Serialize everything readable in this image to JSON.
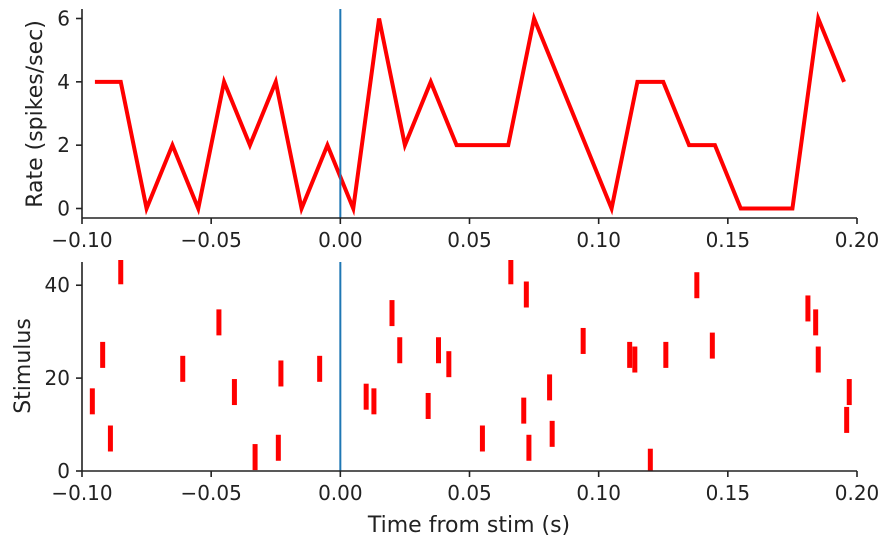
{
  "colors": {
    "data": "#ff0000",
    "stim_line": "#1f77b4",
    "axes": "#222222"
  },
  "chart_data": [
    {
      "type": "line",
      "title": "",
      "xlabel": "",
      "ylabel": "Rate (spikes/sec)",
      "xlim": [
        -0.1,
        0.2
      ],
      "ylim": [
        -0.3,
        6.3
      ],
      "xticks": [
        -0.1,
        -0.05,
        0.0,
        0.05,
        0.1,
        0.15,
        0.2
      ],
      "xtick_labels": [
        "−0.10",
        "−0.05",
        "0.00",
        "0.05",
        "0.10",
        "0.15",
        "0.20"
      ],
      "yticks": [
        0,
        2,
        4,
        6
      ],
      "ytick_labels": [
        "0",
        "2",
        "4",
        "6"
      ],
      "stim_marker_x": 0.0,
      "series": [
        {
          "x": [
            -0.095,
            -0.085,
            -0.075,
            -0.065,
            -0.055,
            -0.045,
            -0.035,
            -0.025,
            -0.015,
            -0.005,
            0.005,
            0.015,
            0.025,
            0.035,
            0.045,
            0.055,
            0.065,
            0.075,
            0.085,
            0.095,
            0.105,
            0.115,
            0.125,
            0.135,
            0.145,
            0.155,
            0.165,
            0.175,
            0.185,
            0.195
          ],
          "y": [
            4,
            4,
            0,
            2,
            0,
            4,
            2,
            4,
            0,
            2,
            0,
            6,
            2,
            4,
            2,
            2,
            2,
            6,
            4,
            2,
            0,
            4,
            4,
            2,
            2,
            0,
            0,
            0,
            6,
            4
          ]
        }
      ]
    },
    {
      "type": "scatter",
      "title": "",
      "xlabel": "Time from stim (s)",
      "ylabel": "Stimulus",
      "marker": "vertical-bar",
      "xlim": [
        -0.1,
        0.2
      ],
      "ylim": [
        0,
        45
      ],
      "xticks": [
        -0.1,
        -0.05,
        0.0,
        0.05,
        0.1,
        0.15,
        0.2
      ],
      "xtick_labels": [
        "−0.10",
        "−0.05",
        "0.00",
        "0.05",
        "0.10",
        "0.15",
        "0.20"
      ],
      "yticks": [
        0,
        20,
        40
      ],
      "ytick_labels": [
        "0",
        "20",
        "40"
      ],
      "stim_marker_x": 0.0,
      "points": [
        {
          "x": -0.085,
          "y": 43
        },
        {
          "x": -0.096,
          "y": 15
        },
        {
          "x": -0.092,
          "y": 25
        },
        {
          "x": -0.089,
          "y": 7
        },
        {
          "x": -0.061,
          "y": 22
        },
        {
          "x": -0.047,
          "y": 32
        },
        {
          "x": -0.041,
          "y": 17
        },
        {
          "x": -0.033,
          "y": 3
        },
        {
          "x": -0.024,
          "y": 5
        },
        {
          "x": -0.023,
          "y": 21
        },
        {
          "x": -0.008,
          "y": 22
        },
        {
          "x": 0.01,
          "y": 16
        },
        {
          "x": 0.013,
          "y": 15
        },
        {
          "x": 0.02,
          "y": 34
        },
        {
          "x": 0.023,
          "y": 26
        },
        {
          "x": 0.034,
          "y": 14
        },
        {
          "x": 0.038,
          "y": 26
        },
        {
          "x": 0.042,
          "y": 23
        },
        {
          "x": 0.055,
          "y": 7
        },
        {
          "x": 0.066,
          "y": 43
        },
        {
          "x": 0.071,
          "y": 13
        },
        {
          "x": 0.072,
          "y": 38
        },
        {
          "x": 0.073,
          "y": 5
        },
        {
          "x": 0.081,
          "y": 18
        },
        {
          "x": 0.082,
          "y": 8
        },
        {
          "x": 0.094,
          "y": 28
        },
        {
          "x": 0.112,
          "y": 25
        },
        {
          "x": 0.114,
          "y": 24
        },
        {
          "x": 0.12,
          "y": 2
        },
        {
          "x": 0.126,
          "y": 25
        },
        {
          "x": 0.138,
          "y": 40
        },
        {
          "x": 0.144,
          "y": 27
        },
        {
          "x": 0.181,
          "y": 35
        },
        {
          "x": 0.184,
          "y": 32
        },
        {
          "x": 0.185,
          "y": 24
        },
        {
          "x": 0.196,
          "y": 11
        },
        {
          "x": 0.197,
          "y": 17
        }
      ]
    }
  ]
}
